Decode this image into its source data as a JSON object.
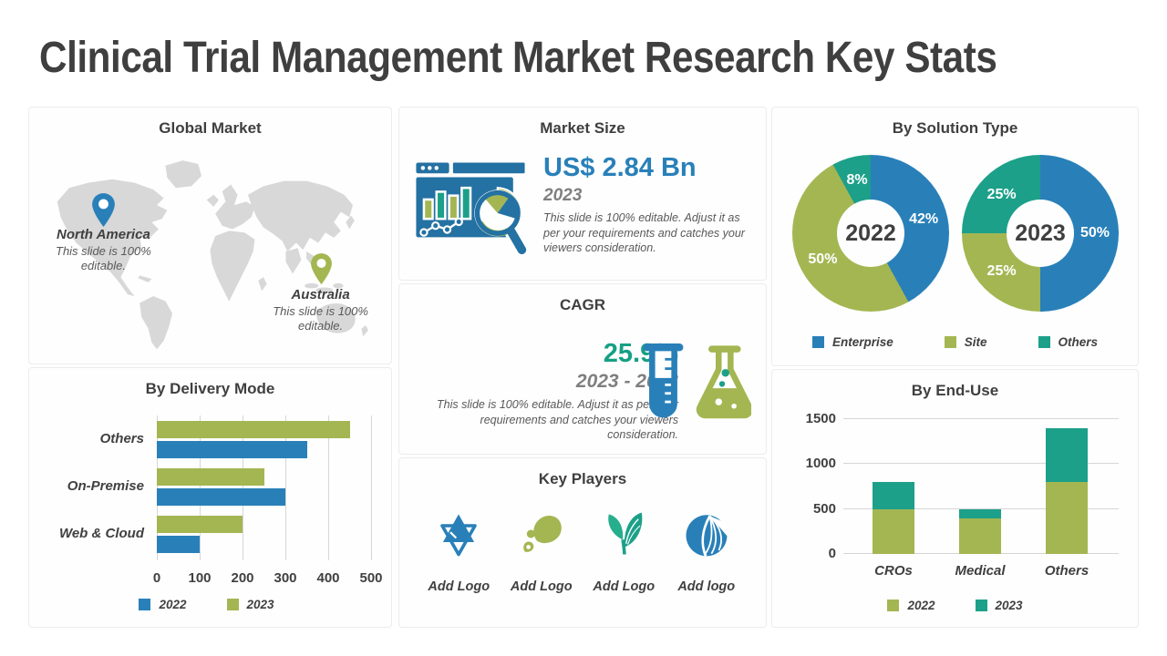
{
  "title": "Clinical Trial Management Market Research Key Stats",
  "colors": {
    "blue": "#2980B9",
    "olive": "#A4B652",
    "teal": "#1CA089",
    "icon_blue": "#2471A3",
    "text_dark": "#3F3F3F",
    "text_gray": "#595959",
    "map_gray": "#D8D8D8"
  },
  "global_market": {
    "title": "Global Market",
    "pins": [
      {
        "name": "North America",
        "note": "This slide is 100% editable.",
        "color": "#2980B9"
      },
      {
        "name": "Australia",
        "note": "This slide is 100% editable.",
        "color": "#A4B652"
      }
    ]
  },
  "market_size": {
    "title": "Market Size",
    "value": "US$ 2.84 Bn",
    "year": "2023",
    "note": "This slide is 100% editable. Adjust it as per your requirements and catches your viewers consideration."
  },
  "cagr": {
    "title": "CAGR",
    "value": "25.9%",
    "period": "2023 - 2033",
    "note": "This slide is 100% editable. Adjust it as per your requirements and catches your viewers consideration."
  },
  "key_players": {
    "title": "Key Players",
    "logos": [
      {
        "icon": "star-logo",
        "label": "Add Logo"
      },
      {
        "icon": "paisley-leaf-logo",
        "label": "Add Logo"
      },
      {
        "icon": "sprout-leaves-logo",
        "label": "Add Logo"
      },
      {
        "icon": "sliced-globe-logo",
        "label": "Add logo"
      }
    ]
  },
  "chart_data": [
    {
      "id": "delivery_mode",
      "type": "bar",
      "orientation": "horizontal",
      "title": "By Delivery Mode",
      "categories": [
        "Others",
        "On-Premise",
        "Web & Cloud"
      ],
      "series": [
        {
          "name": "2023",
          "color": "#A4B652",
          "values": [
            450,
            250,
            200
          ]
        },
        {
          "name": "2022",
          "color": "#2980B9",
          "values": [
            350,
            300,
            100
          ]
        }
      ],
      "xlim": [
        0,
        500
      ],
      "xticks": [
        0,
        100,
        200,
        300,
        400,
        500
      ],
      "grid": "vertical",
      "legend": [
        {
          "name": "2022",
          "color": "#2980B9"
        },
        {
          "name": "2023",
          "color": "#A4B652"
        }
      ],
      "legend_position": "bottom"
    },
    {
      "id": "solution_type",
      "type": "pie",
      "title": "By Solution Type",
      "donuts": [
        {
          "center_label": "2022",
          "slices": [
            {
              "name": "Enterprise",
              "value": 42,
              "label": "42%"
            },
            {
              "name": "Site",
              "value": 50,
              "label": "50%"
            },
            {
              "name": "Others",
              "value": 8,
              "label": "8%"
            }
          ]
        },
        {
          "center_label": "2023",
          "slices": [
            {
              "name": "Enterprise",
              "value": 50,
              "label": "50%"
            },
            {
              "name": "Site",
              "value": 25,
              "label": "25%"
            },
            {
              "name": "Others",
              "value": 25,
              "label": "25%"
            }
          ]
        }
      ],
      "legend": [
        {
          "name": "Enterprise",
          "color": "#2980B9"
        },
        {
          "name": "Site",
          "color": "#A4B652"
        },
        {
          "name": "Others",
          "color": "#1CA089"
        }
      ],
      "legend_position": "bottom"
    },
    {
      "id": "end_use",
      "type": "bar",
      "stacked": true,
      "title": "By End-Use",
      "categories": [
        "CROs",
        "Medical",
        "Others"
      ],
      "series": [
        {
          "name": "2022",
          "color": "#A4B652",
          "values": [
            500,
            400,
            800
          ]
        },
        {
          "name": "2023",
          "color": "#1CA089",
          "values": [
            300,
            100,
            600
          ]
        }
      ],
      "ylim": [
        0,
        1500
      ],
      "yticks": [
        0,
        500,
        1000,
        1500
      ],
      "grid": "horizontal",
      "legend": [
        {
          "name": "2022",
          "color": "#A4B652"
        },
        {
          "name": "2023",
          "color": "#1CA089"
        }
      ],
      "legend_position": "bottom"
    }
  ]
}
